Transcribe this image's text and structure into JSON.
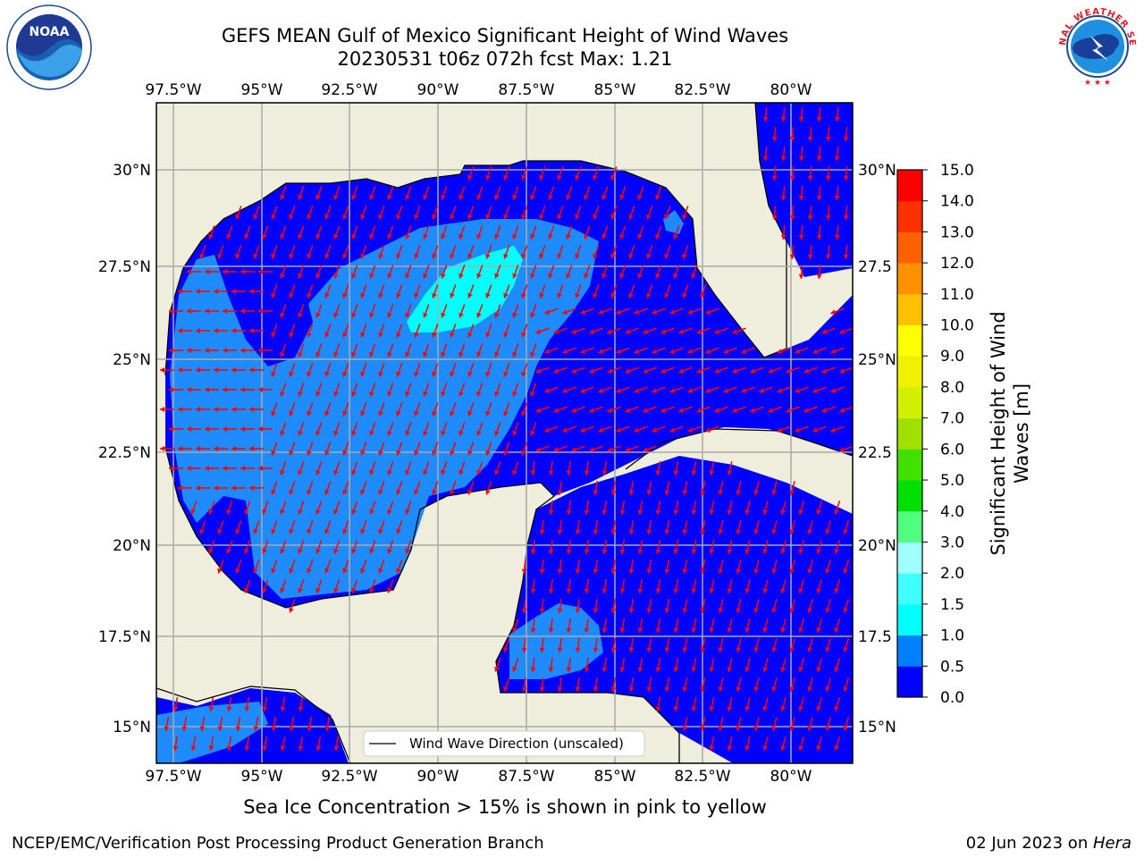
{
  "title": "GEFS MEAN Gulf of Mexico Significant Height of Wind Waves",
  "subtitle": "20230531 t06z 072h fcst   Max: 1.21",
  "footer": {
    "ice_note": "Sea Ice Concentration > 15% is shown in pink to yellow",
    "credit": "NCEP/EMC/Verification Post Processing Product Generation Branch",
    "date": "02 Jun 2023 on ",
    "host": "Hera"
  },
  "logos": {
    "left": "NOAA",
    "right": "NATIONAL WEATHER SERVICE"
  },
  "legend": {
    "label": "Wind Wave Direction (unscaled)"
  },
  "colorbar": {
    "label_line1": "Significant Height of Wind",
    "label_line2": "Waves [m]",
    "ticks": [
      "0.0",
      "0.5",
      "1.0",
      "1.5",
      "2.0",
      "3.0",
      "4.0",
      "5.0",
      "6.0",
      "7.0",
      "8.0",
      "9.0",
      "10.0",
      "11.0",
      "12.0",
      "13.0",
      "14.0",
      "15.0"
    ],
    "colors": [
      "#0000ff",
      "#0080ff",
      "#00ffff",
      "#40ffff",
      "#a0ffff",
      "#50ff80",
      "#00e000",
      "#40e000",
      "#a0e000",
      "#d0f000",
      "#f0f000",
      "#ffff00",
      "#ffc000",
      "#ff9000",
      "#ff6000",
      "#ff3000",
      "#ff0000"
    ]
  },
  "axes": {
    "lon_labels": [
      "97.5°W",
      "95°W",
      "92.5°W",
      "90°W",
      "87.5°W",
      "85°W",
      "82.5°W",
      "80°W"
    ],
    "lat_labels": [
      "30°N",
      "27.5°N",
      "25°N",
      "22.5°N",
      "20°N",
      "17.5°N",
      "15°N"
    ],
    "lat_labels_right": [
      "30°N",
      "27.5",
      "25°N",
      "22.5",
      "20°N",
      "17.5",
      "15°N"
    ]
  },
  "colors": {
    "land": "#efeedc",
    "low": "#0000ff",
    "mid": "#1e8cff",
    "high": "#00ffff",
    "arrow": "#ff0000"
  }
}
